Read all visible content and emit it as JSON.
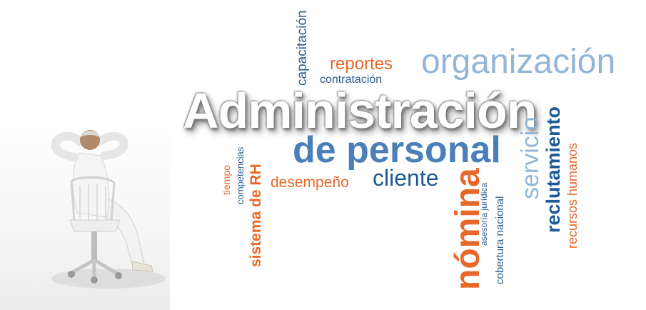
{
  "words": {
    "administracion": "Administración",
    "de_personal": "de personal",
    "organizacion": "organización",
    "reportes": "reportes",
    "contratacion": "contratación",
    "capacitacion": "capacitación",
    "cliente": "cliente",
    "desempeno": "desempeño",
    "tiempo": "tiempo",
    "competencias": "competencias",
    "sistema_de_rh": "sistema de RH",
    "nomina": "nómina",
    "asesoria_juridica": "asesoría jurídica",
    "cobertura_nacional": "cobertura nacional",
    "servicio": "servicio",
    "reclutamiento": "reclutamiento",
    "recursos_humanos": "recursos humanos"
  },
  "colors": {
    "orange": "#e8682a",
    "dark_blue": "#1e5a98",
    "mid_blue": "#4a7fb8",
    "light_blue": "#93b5d6"
  }
}
